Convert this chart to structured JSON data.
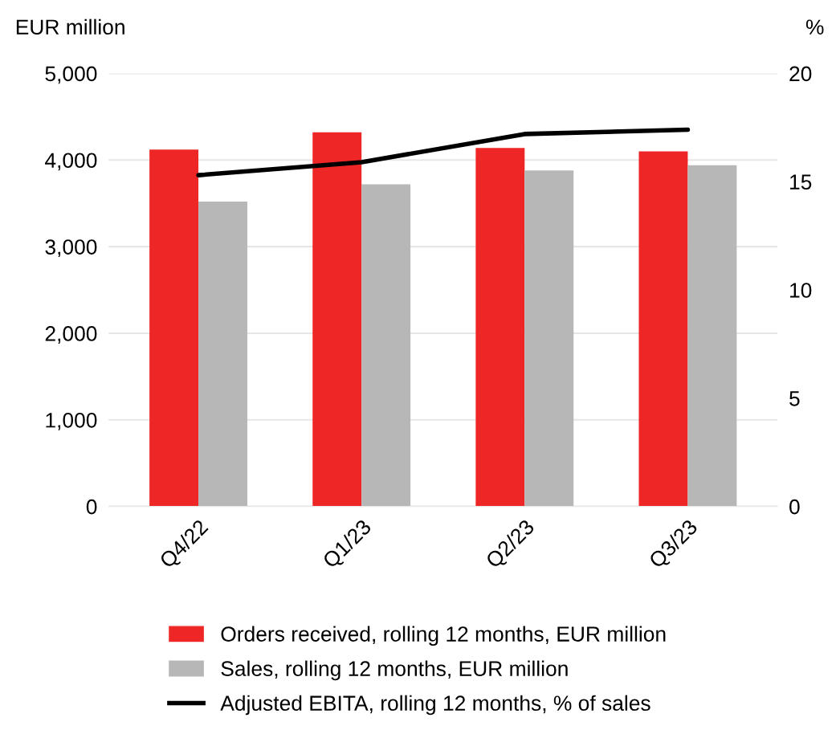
{
  "chart_data": {
    "type": "bar",
    "ylabel": "EUR million",
    "y2label": "%",
    "categories": [
      "Q4/22",
      "Q1/23",
      "Q2/23",
      "Q3/23"
    ],
    "series": [
      {
        "name": "Orders received, rolling 12 months, EUR million",
        "color": "#ee2726",
        "values": [
          4120,
          4320,
          4140,
          4100
        ]
      },
      {
        "name": "Sales, rolling 12 months, EUR million",
        "color": "#b7b7b7",
        "values": [
          3520,
          3720,
          3880,
          3940
        ]
      },
      {
        "name": "Adjusted EBITA, rolling 12 months, % of sales",
        "type": "line",
        "axis": "y2",
        "color": "#000000",
        "values": [
          15.3,
          15.9,
          17.2,
          17.4
        ]
      }
    ],
    "ylim": [
      0,
      5000
    ],
    "yticks": [
      {
        "value": 0,
        "label": "0"
      },
      {
        "value": 1000,
        "label": "1,000"
      },
      {
        "value": 2000,
        "label": "2,000"
      },
      {
        "value": 3000,
        "label": "3,000"
      },
      {
        "value": 4000,
        "label": "4,000"
      },
      {
        "value": 5000,
        "label": "5,000"
      }
    ],
    "y2lim": [
      0,
      20
    ],
    "y2ticks": [
      0,
      5,
      10,
      15,
      20
    ],
    "grid": "y",
    "legend": "bottom",
    "marker": "none",
    "line_style": "solid"
  }
}
